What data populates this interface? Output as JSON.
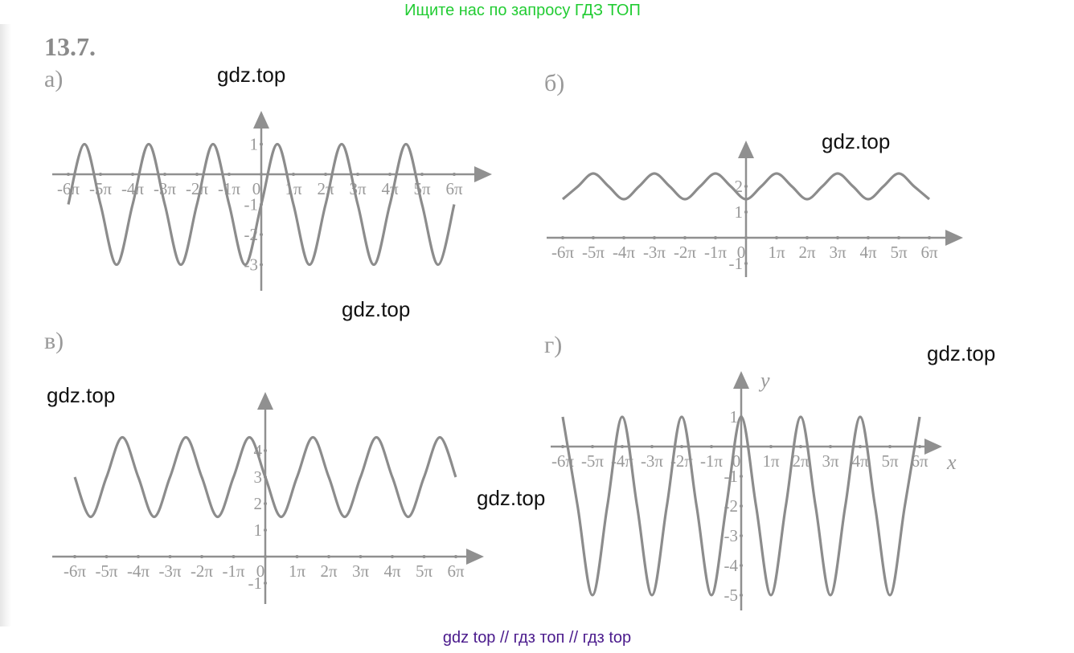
{
  "promo_text": "Ищите нас по запросу ГДЗ ТОП",
  "footer_text": "gdz top  //  гдз топ  //  гдз top",
  "problem_number": "13.7.",
  "watermark": "gdz.top",
  "colors": {
    "promo": "#22cc33",
    "footer": "#4a1a8c",
    "curve": "#8c8c8c",
    "axes": "#909090"
  },
  "chart_data": [
    {
      "part_label": "а)",
      "type": "line",
      "x_unit": "π",
      "xlim": [
        -6,
        6
      ],
      "ylim": [
        -3,
        1
      ],
      "x_tick_labels": [
        "-6π",
        "-5π",
        "-4π",
        "-3π",
        "-2π",
        "-1π",
        "0",
        "1π",
        "2π",
        "3π",
        "4π",
        "5π",
        "6π"
      ],
      "y_ticks": [
        1,
        -1,
        -2,
        -3
      ],
      "y_tick_labels": [
        "1",
        "-1",
        "-2",
        "-3"
      ],
      "x": [
        -6,
        -5.5,
        -5,
        -4.5,
        -4,
        -3.5,
        -3,
        -2.5,
        -2,
        -1.5,
        -1,
        -0.5,
        0,
        0.5,
        1,
        1.5,
        2,
        2.5,
        3,
        3.5,
        4,
        4.5,
        5,
        5.5,
        6
      ],
      "y": [
        -1,
        1,
        -1,
        -3,
        -1,
        1,
        -1,
        -3,
        -1,
        1,
        -1,
        -3,
        -1,
        1,
        -1,
        -3,
        -1,
        1,
        -1,
        -3,
        -1,
        1,
        -1,
        -3,
        -1
      ]
    },
    {
      "part_label": "б)",
      "type": "line",
      "x_unit": "π",
      "xlim": [
        -6,
        6
      ],
      "ylim": [
        -1,
        2.5
      ],
      "x_tick_labels": [
        "-6π",
        "-5π",
        "-4π",
        "-3π",
        "-2π",
        "-1π",
        "0",
        "1π",
        "2π",
        "3π",
        "4π",
        "5π",
        "6π"
      ],
      "y_ticks": [
        2,
        1,
        -1
      ],
      "y_tick_labels": [
        "2",
        "1",
        "-1"
      ],
      "x": [
        -6,
        -5.5,
        -5,
        -4.5,
        -4,
        -3.5,
        -3,
        -2.5,
        -2,
        -1.5,
        -1,
        -0.5,
        0,
        0.5,
        1,
        1.5,
        2,
        2.5,
        3,
        3.5,
        4,
        4.5,
        5,
        5.5,
        6
      ],
      "y": [
        1.5,
        2,
        2.5,
        2,
        1.5,
        2,
        2.5,
        2,
        1.5,
        2,
        2.5,
        2,
        1.5,
        2,
        2.5,
        2,
        1.5,
        2,
        2.5,
        2,
        1.5,
        2,
        2.5,
        2,
        1.5
      ]
    },
    {
      "part_label": "в)",
      "type": "line",
      "x_unit": "π",
      "xlim": [
        -6,
        6
      ],
      "ylim": [
        -1,
        4.5
      ],
      "x_tick_labels": [
        "-6π",
        "-5π",
        "-4π",
        "-3π",
        "-2π",
        "-1π",
        "0",
        "1π",
        "2π",
        "3π",
        "4π",
        "5π",
        "6π"
      ],
      "y_ticks": [
        4,
        3,
        2,
        1,
        -1
      ],
      "y_tick_labels": [
        "4",
        "3",
        "2",
        "1",
        "-1"
      ],
      "x": [
        -6,
        -5.5,
        -5,
        -4.5,
        -4,
        -3.5,
        -3,
        -2.5,
        -2,
        -1.5,
        -1,
        -0.5,
        0,
        0.5,
        1,
        1.5,
        2,
        2.5,
        3,
        3.5,
        4,
        4.5,
        5,
        5.5,
        6
      ],
      "y": [
        3,
        1.5,
        3,
        4.5,
        3,
        1.5,
        3,
        4.5,
        3,
        1.5,
        3,
        4.5,
        3,
        1.5,
        3,
        4.5,
        3,
        1.5,
        3,
        4.5,
        3,
        1.5,
        3,
        4.5,
        3
      ]
    },
    {
      "part_label": "г)",
      "type": "line",
      "x_unit": "π",
      "xlim": [
        -6,
        6
      ],
      "ylim": [
        -5,
        1
      ],
      "xlabel": "x",
      "ylabel": "y",
      "x_tick_labels": [
        "-6π",
        "-5π",
        "-4π",
        "-3π",
        "-2π",
        "-1π",
        "0",
        "1π",
        "2π",
        "3π",
        "4π",
        "5π",
        "6π"
      ],
      "y_ticks": [
        1,
        -1,
        -2,
        -3,
        -4,
        -5
      ],
      "y_tick_labels": [
        "1",
        "-1",
        "-2",
        "-3",
        "-4",
        "-5"
      ],
      "x": [
        -6,
        -5.5,
        -5,
        -4.5,
        -4,
        -3.5,
        -3,
        -2.5,
        -2,
        -1.5,
        -1,
        -0.5,
        0,
        0.5,
        1,
        1.5,
        2,
        2.5,
        3,
        3.5,
        4,
        4.5,
        5,
        5.5,
        6
      ],
      "y": [
        1,
        -2,
        -5,
        -2,
        1,
        -2,
        -5,
        -2,
        1,
        -2,
        -5,
        -2,
        1,
        -2,
        -5,
        -2,
        1,
        -2,
        -5,
        -2,
        1,
        -2,
        -5,
        -2,
        1
      ]
    }
  ]
}
